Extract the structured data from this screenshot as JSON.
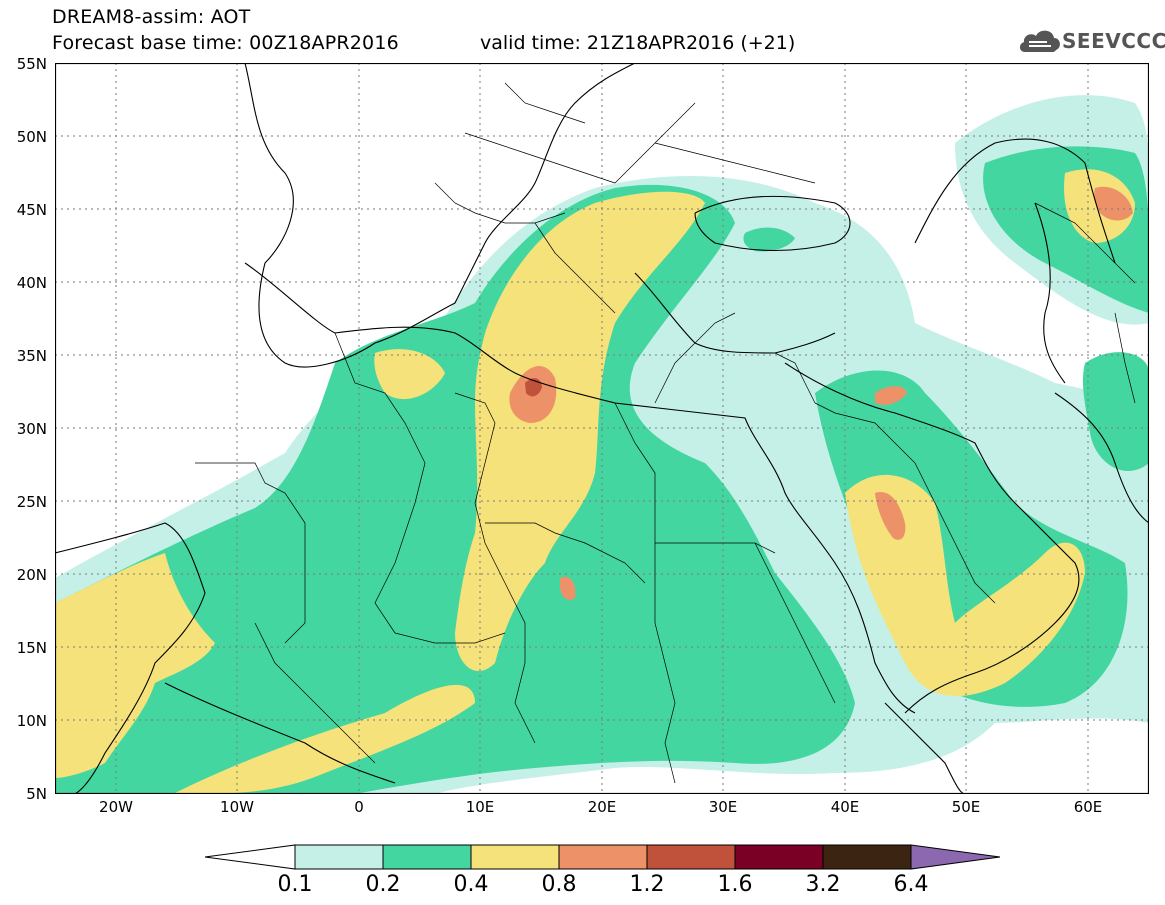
{
  "header": {
    "title_line1": "DREAM8-assim: AOT",
    "title_line2": "Forecast base time: 00Z18APR2016",
    "valid_time": "valid time: 21Z18APR2016 (+21)"
  },
  "logo": {
    "text": "SEEVCCC",
    "icon": "cloud-logo-icon"
  },
  "map": {
    "lat_labels": [
      "55N",
      "50N",
      "45N",
      "40N",
      "35N",
      "30N",
      "25N",
      "20N",
      "15N",
      "10N",
      "5N"
    ],
    "lon_labels": [
      "20W",
      "10W",
      "0",
      "10E",
      "20E",
      "30E",
      "40E",
      "50E",
      "60E"
    ],
    "extent": {
      "lon": [
        -25,
        65
      ],
      "lat": [
        5,
        55
      ]
    }
  },
  "colorbar": {
    "labels": [
      "0.1",
      "0.2",
      "0.4",
      "0.8",
      "1.2",
      "1.6",
      "3.2",
      "6.4"
    ],
    "colors": [
      "#ffffff",
      "#c4f0e8",
      "#44d6a0",
      "#f5e27a",
      "#ec9168",
      "#c0513b",
      "#7a0025",
      "#3c2412",
      "#8c68b0"
    ]
  },
  "colors": {
    "level1": "#c4f0e8",
    "level2": "#44d6a0",
    "level3": "#f5e27a",
    "level4": "#ec9168",
    "level5": "#c0513b",
    "level6": "#7a0025",
    "border": "#000000",
    "grid": "#7a7a7a"
  }
}
